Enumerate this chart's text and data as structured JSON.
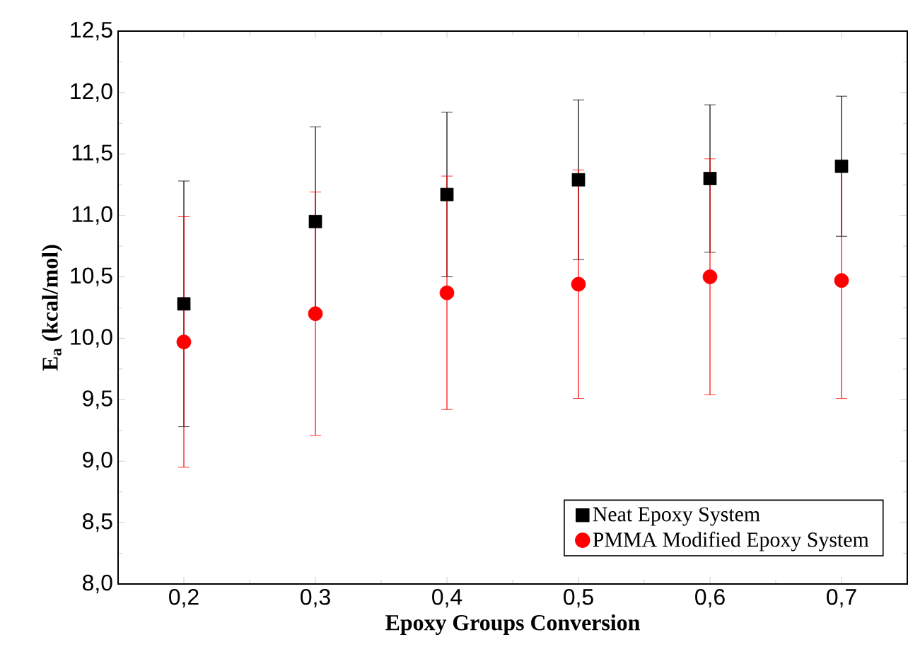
{
  "chart_data": {
    "type": "scatter",
    "xlabel": "Epoxy Groups Conversion",
    "ylabel": "E$_{a}$ (kcal/mol)",
    "x": [
      0.2,
      0.3,
      0.4,
      0.5,
      0.6,
      0.7
    ],
    "series": [
      {
        "name": "Neat Epoxy System",
        "color": "#000000",
        "marker": "square",
        "values": [
          10.28,
          10.95,
          11.17,
          11.29,
          11.3,
          11.4
        ],
        "errors": [
          1.0,
          0.77,
          0.67,
          0.65,
          0.6,
          0.57
        ]
      },
      {
        "name": "PMMA Modified Epoxy System",
        "color": "#ff0000",
        "marker": "circle",
        "values": [
          9.97,
          10.2,
          10.37,
          10.44,
          10.5,
          10.47
        ],
        "errors": [
          1.02,
          0.99,
          0.95,
          0.93,
          0.96,
          0.96
        ]
      }
    ],
    "xlim": [
      0.15,
      0.75
    ],
    "xticks": [
      {
        "value": 0.2,
        "label": "0,2"
      },
      {
        "value": 0.3,
        "label": "0,3"
      },
      {
        "value": 0.4,
        "label": "0,4"
      },
      {
        "value": 0.5,
        "label": "0,5"
      },
      {
        "value": 0.6,
        "label": "0,6"
      },
      {
        "value": 0.7,
        "label": "0,7"
      }
    ],
    "ylim": [
      8.0,
      12.5
    ],
    "yticks": [
      {
        "value": 8.0,
        "label": "8,0"
      },
      {
        "value": 8.5,
        "label": "8,5"
      },
      {
        "value": 9.0,
        "label": "9,0"
      },
      {
        "value": 9.5,
        "label": "9,5"
      },
      {
        "value": 10.0,
        "label": "10,0"
      },
      {
        "value": 10.5,
        "label": "10,5"
      },
      {
        "value": 11.0,
        "label": "11,0"
      },
      {
        "value": 11.5,
        "label": "11,5"
      },
      {
        "value": 12.0,
        "label": "12,0"
      },
      {
        "value": 12.5,
        "label": "12,5"
      }
    ],
    "legend": "bottom right",
    "grid": false
  }
}
